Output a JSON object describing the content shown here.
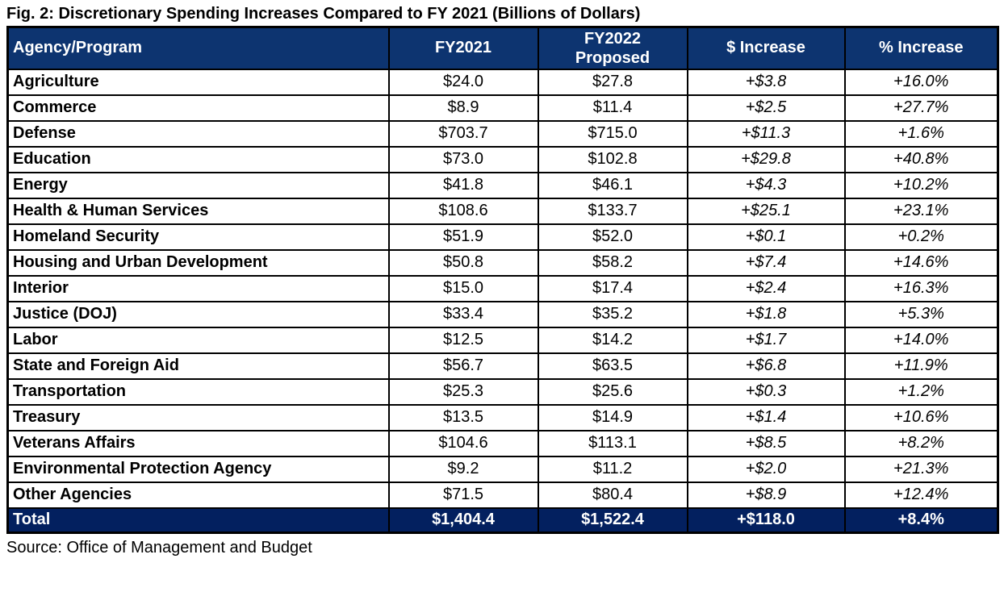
{
  "title": "Fig. 2: Discretionary Spending Increases Compared to FY 2021 (Billions of Dollars)",
  "source": "Source: Office of Management and Budget",
  "colors": {
    "header_bg": "#0d3470",
    "total_bg": "#03205f",
    "border": "#000000",
    "header_text": "#ffffff",
    "body_text": "#000000"
  },
  "table": {
    "headers": [
      "Agency/Program",
      "FY2021",
      "FY2022 Proposed",
      "$ Increase",
      "% Increase"
    ],
    "fy2022_header_lines": {
      "line1": "FY2022",
      "line2": "Proposed"
    },
    "rows": [
      {
        "agency": "Agriculture",
        "fy2021": "$24.0",
        "fy2022": "$27.8",
        "dollar_increase": "+$3.8",
        "pct_increase": "+16.0%"
      },
      {
        "agency": "Commerce",
        "fy2021": "$8.9",
        "fy2022": "$11.4",
        "dollar_increase": "+$2.5",
        "pct_increase": "+27.7%"
      },
      {
        "agency": "Defense",
        "fy2021": "$703.7",
        "fy2022": "$715.0",
        "dollar_increase": "+$11.3",
        "pct_increase": "+1.6%"
      },
      {
        "agency": "Education",
        "fy2021": "$73.0",
        "fy2022": "$102.8",
        "dollar_increase": "+$29.8",
        "pct_increase": "+40.8%"
      },
      {
        "agency": "Energy",
        "fy2021": "$41.8",
        "fy2022": "$46.1",
        "dollar_increase": "+$4.3",
        "pct_increase": "+10.2%"
      },
      {
        "agency": "Health & Human Services",
        "fy2021": "$108.6",
        "fy2022": "$133.7",
        "dollar_increase": "+$25.1",
        "pct_increase": "+23.1%"
      },
      {
        "agency": "Homeland Security",
        "fy2021": "$51.9",
        "fy2022": "$52.0",
        "dollar_increase": "+$0.1",
        "pct_increase": "+0.2%"
      },
      {
        "agency": "Housing and Urban Development",
        "fy2021": "$50.8",
        "fy2022": "$58.2",
        "dollar_increase": "+$7.4",
        "pct_increase": "+14.6%"
      },
      {
        "agency": "Interior",
        "fy2021": "$15.0",
        "fy2022": "$17.4",
        "dollar_increase": "+$2.4",
        "pct_increase": "+16.3%"
      },
      {
        "agency": "Justice (DOJ)",
        "fy2021": "$33.4",
        "fy2022": "$35.2",
        "dollar_increase": "+$1.8",
        "pct_increase": "+5.3%"
      },
      {
        "agency": "Labor",
        "fy2021": "$12.5",
        "fy2022": "$14.2",
        "dollar_increase": "+$1.7",
        "pct_increase": "+14.0%"
      },
      {
        "agency": "State and Foreign Aid",
        "fy2021": "$56.7",
        "fy2022": "$63.5",
        "dollar_increase": "+$6.8",
        "pct_increase": "+11.9%"
      },
      {
        "agency": "Transportation",
        "fy2021": "$25.3",
        "fy2022": "$25.6",
        "dollar_increase": "+$0.3",
        "pct_increase": "+1.2%"
      },
      {
        "agency": "Treasury",
        "fy2021": "$13.5",
        "fy2022": "$14.9",
        "dollar_increase": "+$1.4",
        "pct_increase": "+10.6%"
      },
      {
        "agency": "Veterans Affairs",
        "fy2021": "$104.6",
        "fy2022": "$113.1",
        "dollar_increase": "+$8.5",
        "pct_increase": "+8.2%"
      },
      {
        "agency": "Environmental Protection Agency",
        "fy2021": "$9.2",
        "fy2022": "$11.2",
        "dollar_increase": "+$2.0",
        "pct_increase": "+21.3%"
      },
      {
        "agency": "Other Agencies",
        "fy2021": "$71.5",
        "fy2022": "$80.4",
        "dollar_increase": "+$8.9",
        "pct_increase": "+12.4%"
      }
    ],
    "total": {
      "agency": "Total",
      "fy2021": "$1,404.4",
      "fy2022": "$1,522.4",
      "dollar_increase": "+$118.0",
      "pct_increase": "+8.4%"
    }
  },
  "chart_data": {
    "type": "table",
    "title": "Fig. 2: Discretionary Spending Increases Compared to FY 2021 (Billions of Dollars)",
    "columns": [
      "Agency/Program",
      "FY2021",
      "FY2022 Proposed",
      "$ Increase",
      "% Increase"
    ],
    "rows": [
      [
        "Agriculture",
        24.0,
        27.8,
        3.8,
        16.0
      ],
      [
        "Commerce",
        8.9,
        11.4,
        2.5,
        27.7
      ],
      [
        "Defense",
        703.7,
        715.0,
        11.3,
        1.6
      ],
      [
        "Education",
        73.0,
        102.8,
        29.8,
        40.8
      ],
      [
        "Energy",
        41.8,
        46.1,
        4.3,
        10.2
      ],
      [
        "Health & Human Services",
        108.6,
        133.7,
        25.1,
        23.1
      ],
      [
        "Homeland Security",
        51.9,
        52.0,
        0.1,
        0.2
      ],
      [
        "Housing and Urban Development",
        50.8,
        58.2,
        7.4,
        14.6
      ],
      [
        "Interior",
        15.0,
        17.4,
        2.4,
        16.3
      ],
      [
        "Justice (DOJ)",
        33.4,
        35.2,
        1.8,
        5.3
      ],
      [
        "Labor",
        12.5,
        14.2,
        1.7,
        14.0
      ],
      [
        "State and Foreign Aid",
        56.7,
        63.5,
        6.8,
        11.9
      ],
      [
        "Transportation",
        25.3,
        25.6,
        0.3,
        1.2
      ],
      [
        "Treasury",
        13.5,
        14.9,
        1.4,
        10.6
      ],
      [
        "Veterans Affairs",
        104.6,
        113.1,
        8.5,
        8.2
      ],
      [
        "Environmental Protection Agency",
        9.2,
        11.2,
        2.0,
        21.3
      ],
      [
        "Other Agencies",
        71.5,
        80.4,
        8.9,
        12.4
      ]
    ],
    "total_row": [
      "Total",
      1404.4,
      1522.4,
      118.0,
      8.4
    ],
    "units": "billions of dollars",
    "source": "Office of Management and Budget"
  }
}
